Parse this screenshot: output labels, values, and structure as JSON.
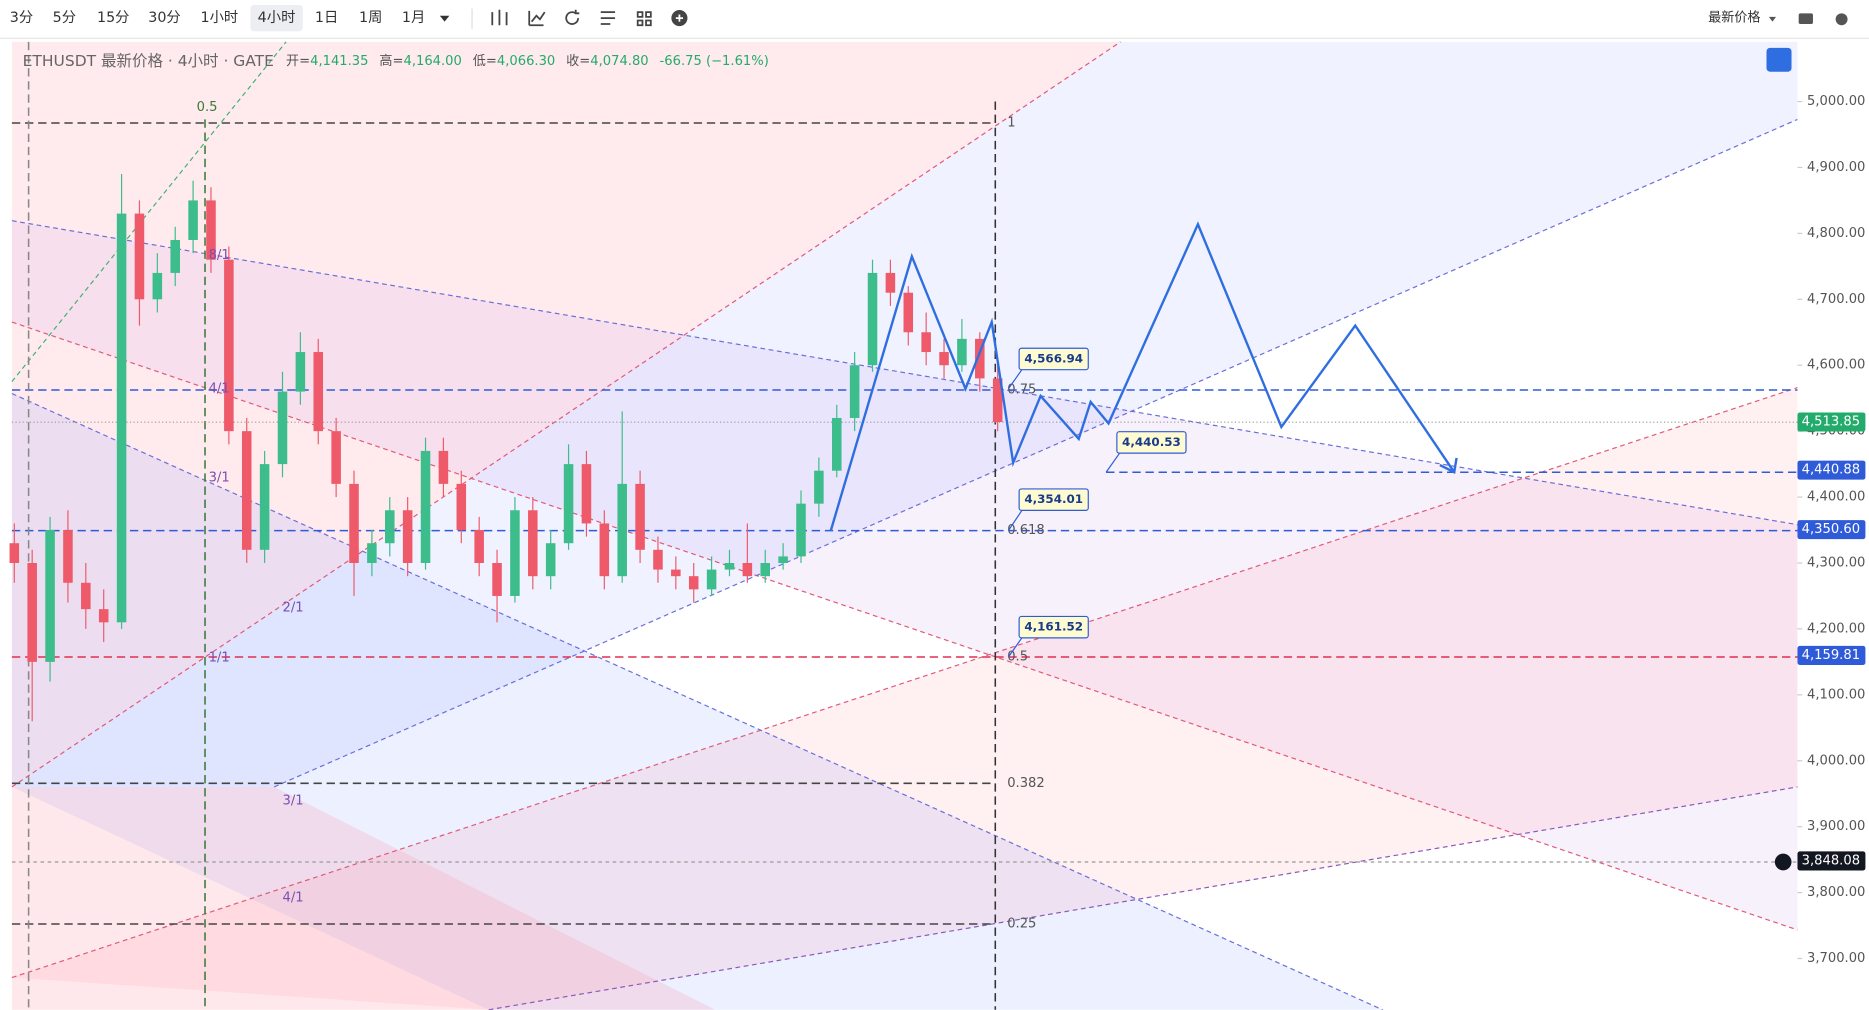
{
  "toolbar": {
    "intervals": [
      "3分",
      "5分",
      "15分",
      "30分",
      "1小时",
      "4小时",
      "1日",
      "1周",
      "1月"
    ],
    "active": "4小时",
    "price_menu": "最新价格"
  },
  "header": {
    "symbol": "ETHUSDT 最新价格 · 4小时 · GATE",
    "open_label": "开=",
    "open": "4,141.35",
    "high_label": "高=",
    "high": "4,164.00",
    "low_label": "低=",
    "low": "4,066.30",
    "close_label": "收=",
    "close": "4,074.80",
    "change": "-66.75 (−1.61%)"
  },
  "price_axis": {
    "labels": [
      {
        "value": 5000,
        "label": "5,000.00"
      },
      {
        "value": 4900,
        "label": "4,900.00"
      },
      {
        "value": 4800,
        "label": "4,800.00"
      },
      {
        "value": 4700,
        "label": "4,700.00"
      },
      {
        "value": 4600,
        "label": "4,600.00"
      },
      {
        "value": 4500,
        "label": "4,500.00"
      },
      {
        "value": 4400,
        "label": "4,400.00"
      },
      {
        "value": 4300,
        "label": "4,300.00"
      },
      {
        "value": 4200,
        "label": "4,200.00"
      },
      {
        "value": 4100,
        "label": "4,100.00"
      },
      {
        "value": 4000,
        "label": "4,000.00"
      },
      {
        "value": 3900,
        "label": "3,900.00"
      },
      {
        "value": 3800,
        "label": "3,800.00"
      },
      {
        "value": 3700,
        "label": "3,700.00"
      }
    ],
    "tags": [
      {
        "value": 4513.85,
        "label": "4,513.85",
        "color": "#22ab6a"
      },
      {
        "value": 4440.88,
        "label": "4,440.88",
        "color": "#2f5bd8"
      },
      {
        "value": 4350.6,
        "label": "4,350.60",
        "color": "#2f5bd8"
      },
      {
        "value": 4159.81,
        "label": "4,159.81",
        "color": "#2f5bd8"
      },
      {
        "value": 3848.08,
        "label": "3,848.08",
        "color": "#131722"
      }
    ]
  },
  "callouts": [
    "4,566.94",
    "4,440.53",
    "4,354.01",
    "4,161.52"
  ],
  "fib_labels": [
    "0.5",
    "1",
    "0.75",
    "0.618",
    "0.5",
    "0.382",
    "0.25"
  ],
  "gann_labels": [
    "8/1",
    "4/1",
    "3/1",
    "1/1",
    "2/1",
    "3/1",
    "4/1"
  ],
  "candles": [
    [
      4330,
      4360,
      4270,
      4300
    ],
    [
      4300,
      4320,
      4060,
      4150
    ],
    [
      4150,
      4370,
      4120,
      4350
    ],
    [
      4350,
      4380,
      4240,
      4270
    ],
    [
      4270,
      4300,
      4200,
      4230
    ],
    [
      4230,
      4260,
      4180,
      4210
    ],
    [
      4210,
      4890,
      4200,
      4830
    ],
    [
      4830,
      4850,
      4660,
      4700
    ],
    [
      4700,
      4770,
      4680,
      4740
    ],
    [
      4740,
      4810,
      4720,
      4790
    ],
    [
      4790,
      4880,
      4770,
      4850
    ],
    [
      4850,
      4870,
      4740,
      4760
    ],
    [
      4760,
      4780,
      4480,
      4500
    ],
    [
      4500,
      4520,
      4300,
      4320
    ],
    [
      4320,
      4470,
      4300,
      4450
    ],
    [
      4450,
      4590,
      4430,
      4560
    ],
    [
      4560,
      4650,
      4540,
      4620
    ],
    [
      4620,
      4640,
      4480,
      4500
    ],
    [
      4500,
      4520,
      4400,
      4420
    ],
    [
      4420,
      4440,
      4250,
      4300
    ],
    [
      4300,
      4350,
      4280,
      4330
    ],
    [
      4330,
      4400,
      4310,
      4380
    ],
    [
      4380,
      4400,
      4280,
      4300
    ],
    [
      4300,
      4490,
      4290,
      4470
    ],
    [
      4470,
      4490,
      4400,
      4420
    ],
    [
      4420,
      4440,
      4330,
      4350
    ],
    [
      4350,
      4370,
      4280,
      4300
    ],
    [
      4300,
      4320,
      4210,
      4250
    ],
    [
      4250,
      4400,
      4240,
      4380
    ],
    [
      4380,
      4400,
      4260,
      4280
    ],
    [
      4280,
      4350,
      4260,
      4330
    ],
    [
      4330,
      4480,
      4320,
      4450
    ],
    [
      4450,
      4470,
      4340,
      4360
    ],
    [
      4360,
      4380,
      4260,
      4280
    ],
    [
      4280,
      4530,
      4270,
      4420
    ],
    [
      4420,
      4440,
      4300,
      4320
    ],
    [
      4320,
      4340,
      4270,
      4290
    ],
    [
      4290,
      4310,
      4260,
      4280
    ],
    [
      4280,
      4300,
      4240,
      4260
    ],
    [
      4260,
      4310,
      4250,
      4290
    ],
    [
      4290,
      4320,
      4280,
      4300
    ],
    [
      4300,
      4360,
      4270,
      4280
    ],
    [
      4280,
      4320,
      4270,
      4300
    ],
    [
      4300,
      4330,
      4290,
      4310
    ],
    [
      4310,
      4410,
      4300,
      4390
    ],
    [
      4390,
      4460,
      4370,
      4440
    ],
    [
      4440,
      4540,
      4430,
      4520
    ],
    [
      4520,
      4620,
      4500,
      4600
    ],
    [
      4600,
      4760,
      4590,
      4740
    ],
    [
      4740,
      4760,
      4690,
      4710
    ],
    [
      4710,
      4720,
      4630,
      4650
    ],
    [
      4650,
      4680,
      4600,
      4620
    ],
    [
      4620,
      4640,
      4580,
      4600
    ],
    [
      4600,
      4670,
      4590,
      4640
    ],
    [
      4640,
      4650,
      4560,
      4580
    ],
    [
      4580,
      4600,
      4500,
      4513.85
    ]
  ]
}
